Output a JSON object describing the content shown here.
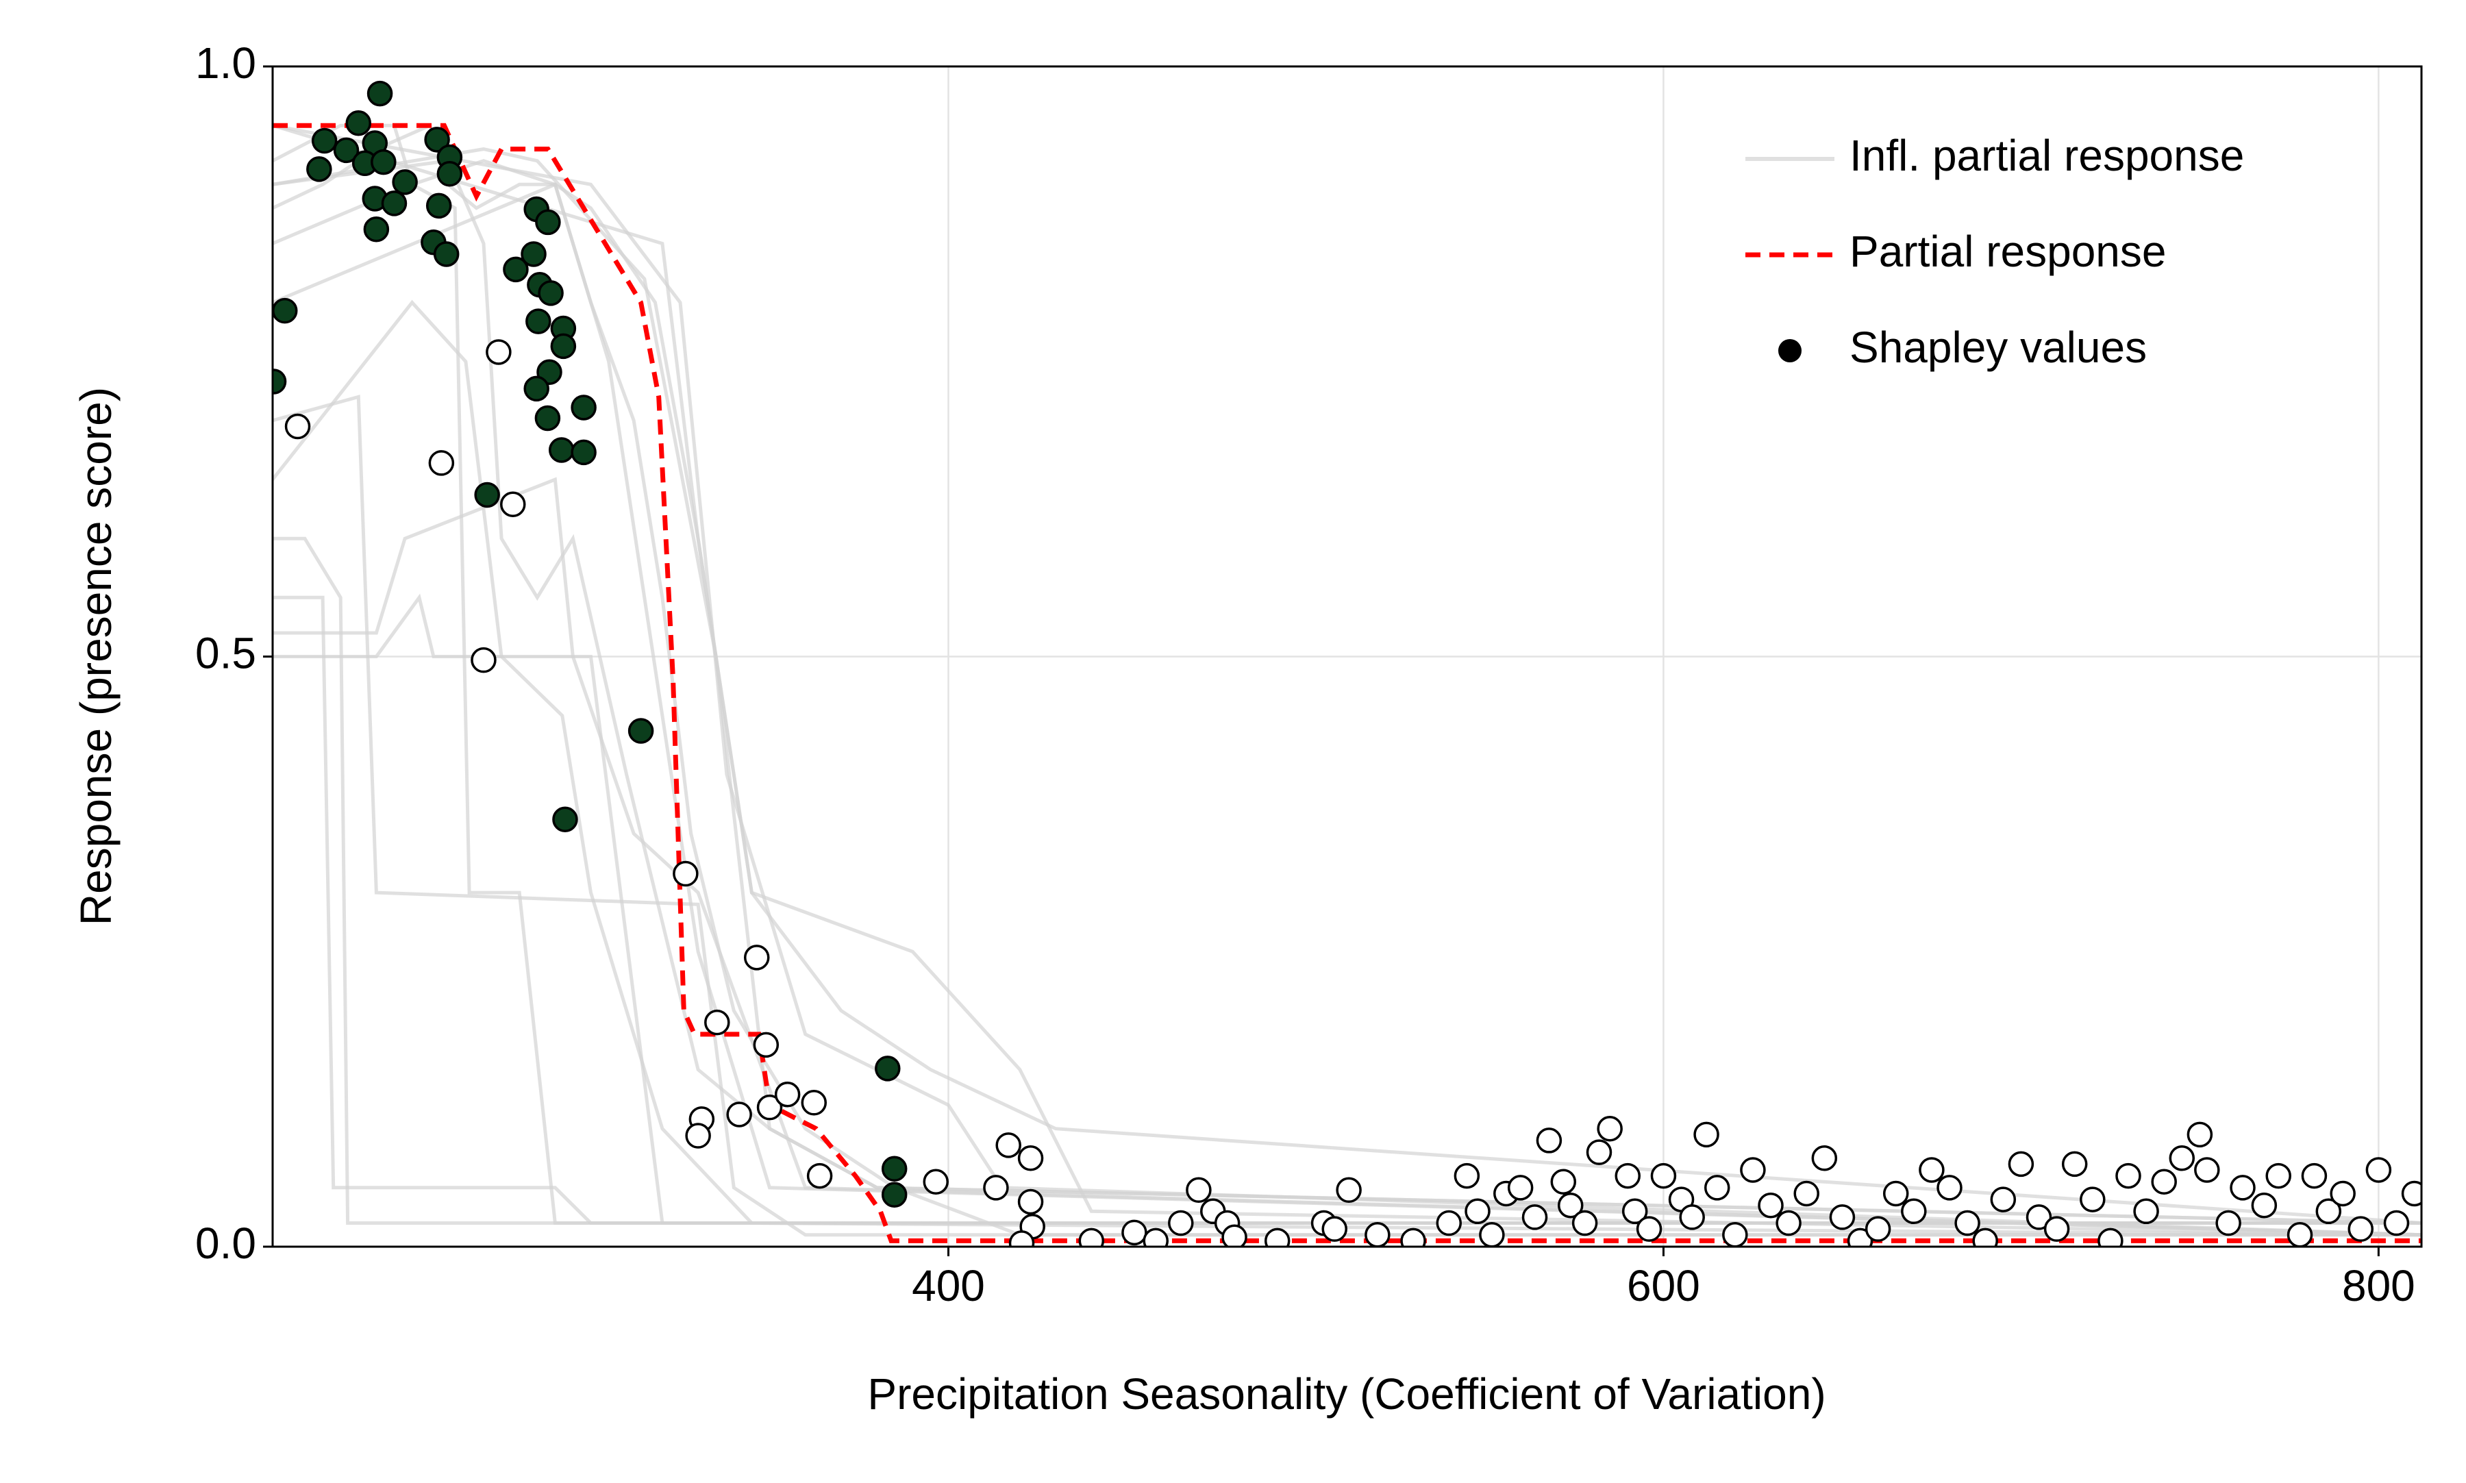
{
  "chart_data": {
    "type": "line",
    "xlabel": "Precipitation Seasonality (Coefficient of Variation)",
    "ylabel": "Response (presence score)",
    "xlim": [
      211,
      812
    ],
    "ylim": [
      0,
      1
    ],
    "xticks": [
      400,
      600,
      800
    ],
    "yticks": [
      {
        "value": 0,
        "label": "0.0"
      },
      0.5,
      {
        "value": 1,
        "label": "1.0"
      }
    ],
    "grid": true,
    "legend": "upper right",
    "series": [
      {
        "name": "Infl. partial response",
        "color": "#d3d3d3",
        "lines": [
          {
            "x": [
              211,
              225,
              240,
              255,
              260,
              268,
              280,
              290,
              300,
              312,
              320,
              328,
              340,
              360,
              385,
              420,
              812
            ],
            "values": [
              0.88,
              0.9,
              0.93,
              0.95,
              0.9,
              0.88,
              0.9,
              0.9,
              0.8,
              0.7,
              0.55,
              0.35,
              0.2,
              0.1,
              0.05,
              0.01,
              0.01
            ]
          },
          {
            "x": [
              211,
              220,
              230,
              232,
              812
            ],
            "values": [
              0.6,
              0.6,
              0.55,
              0.02,
              0.02
            ]
          },
          {
            "x": [
              211,
              240,
              252,
              256,
              300,
              320,
              812
            ],
            "values": [
              0.5,
              0.5,
              0.55,
              0.5,
              0.5,
              0.02,
              0.02
            ]
          },
          {
            "x": [
              211,
              230,
              245,
              250,
              270,
              290,
              305,
              330,
              350,
              812
            ],
            "values": [
              0.92,
              0.95,
              0.95,
              0.9,
              0.92,
              0.9,
              0.75,
              0.25,
              0.05,
              0.01
            ]
          },
          {
            "x": [
              211,
              250,
              262,
              266,
              280,
              290,
              300,
              812
            ],
            "values": [
              0.85,
              0.9,
              0.88,
              0.3,
              0.3,
              0.02,
              0.02,
              0.02
            ]
          },
          {
            "x": [
              211,
              260,
              270,
              275,
              285,
              295,
              310,
              330,
              350,
              380,
              812
            ],
            "values": [
              0.9,
              0.92,
              0.85,
              0.6,
              0.55,
              0.6,
              0.4,
              0.15,
              0.1,
              0.05,
              0.02
            ]
          },
          {
            "x": [
              211,
              290,
              300,
              318,
              330,
              345,
              370,
              395,
              430,
              812
            ],
            "values": [
              0.8,
              0.9,
              0.88,
              0.8,
              0.6,
              0.3,
              0.2,
              0.15,
              0.1,
              0.02
            ]
          },
          {
            "x": [
              211,
              225,
              228,
              260,
              290,
              300,
              320,
              812
            ],
            "values": [
              0.55,
              0.55,
              0.05,
              0.05,
              0.05,
              0.02,
              0.02,
              0.02
            ]
          },
          {
            "x": [
              211,
              300,
              325,
              338,
              360,
              380,
              400,
              415,
              812
            ],
            "values": [
              0.95,
              0.9,
              0.8,
              0.4,
              0.18,
              0.15,
              0.12,
              0.05,
              0.01
            ]
          },
          {
            "x": [
              211,
              250,
              265,
              275,
              292,
              300,
              320,
              345,
              812
            ],
            "values": [
              0.65,
              0.8,
              0.75,
              0.5,
              0.45,
              0.3,
              0.1,
              0.02,
              0.01
            ]
          },
          {
            "x": [
              211,
              240,
              248,
              290,
              295,
              312,
              330,
              360,
              812
            ],
            "values": [
              0.52,
              0.52,
              0.6,
              0.65,
              0.5,
              0.35,
              0.3,
              0.05,
              0.01
            ]
          },
          {
            "x": [
              211,
              270,
              285,
              300,
              315,
              335,
              350,
              380,
              812
            ],
            "values": [
              0.9,
              0.93,
              0.92,
              0.87,
              0.82,
              0.5,
              0.1,
              0.05,
              0.02
            ]
          },
          {
            "x": [
              211,
              235,
              240,
              330,
              340,
              360,
              812
            ],
            "values": [
              0.7,
              0.72,
              0.3,
              0.29,
              0.05,
              0.01,
              0.01
            ]
          },
          {
            "x": [
              211,
              320,
              330,
              345,
              390,
              420,
              440,
              812
            ],
            "values": [
              0.95,
              0.85,
              0.6,
              0.3,
              0.25,
              0.15,
              0.03,
              0.01
            ]
          }
        ]
      },
      {
        "name": "Partial response",
        "color": "#ff0000",
        "x": [
          211,
          259,
          268,
          275,
          288,
          300,
          314,
          319,
          323,
          326,
          329,
          347,
          350,
          363,
          374,
          381,
          384,
          812
        ],
        "values": [
          0.95,
          0.95,
          0.89,
          0.93,
          0.93,
          0.87,
          0.8,
          0.72,
          0.48,
          0.2,
          0.18,
          0.18,
          0.12,
          0.1,
          0.06,
          0.03,
          0.005,
          0.005
        ]
      },
      {
        "name": "Shapley values",
        "color": "#000000",
        "groups": [
          {
            "color": "#0b3d1c",
            "x": [
              211.3,
              214.4,
              225.5,
              224,
              235,
              239.6,
              241,
              231.6,
              236.8,
              242,
              239.6,
              245,
              248,
              240,
              257,
              260.5,
              260.5,
              257.5,
              256,
              259.6,
              284.8,
              288,
              284,
              279,
              285.7,
              288.8,
              285.3,
              292.3,
              292.3,
              288.4,
              284.8,
              287.9,
              298,
              291.8,
              298,
              271,
              314,
              292.8,
              383,
              384.9,
              384.9
            ],
            "values": [
              0.733,
              0.793,
              0.937,
              0.913,
              0.952,
              0.935,
              0.977,
              0.929,
              0.918,
              0.919,
              0.888,
              0.884,
              0.902,
              0.862,
              0.938,
              0.923,
              0.909,
              0.882,
              0.851,
              0.841,
              0.879,
              0.868,
              0.841,
              0.828,
              0.815,
              0.808,
              0.784,
              0.778,
              0.763,
              0.741,
              0.727,
              0.702,
              0.711,
              0.675,
              0.673,
              0.637,
              0.437,
              0.362,
              0.151,
              0.066,
              0.044
            ]
          },
          {
            "color": "#ffffff",
            "x": [
              218,
              274.2,
              258.2,
              278.2,
              270,
              326.5,
              346.4,
              335.3,
              349,
              350,
              355,
              362.4,
              341.5,
              331,
              330,
              364,
              396.5,
              413.3,
              416.8,
              423,
              423,
              423.5,
              420.5,
              440,
              452,
              458,
              465,
              470,
              474,
              478,
              480,
              492,
              505,
              508,
              512,
              520,
              530,
              540,
              545,
              548,
              552,
              556,
              560,
              564,
              568,
              572,
              574,
              578,
              582,
              585,
              590,
              592,
              596,
              600,
              605,
              608,
              612,
              615,
              620,
              625,
              630,
              635,
              640,
              645,
              650,
              655,
              660,
              665,
              670,
              675,
              680,
              685,
              690,
              695,
              700,
              705,
              710,
              715,
              720,
              725,
              730,
              735,
              740,
              745,
              750,
              752,
              758,
              762,
              768,
              772,
              778,
              782,
              786,
              790,
              795,
              800,
              805,
              810
            ],
            "values": [
              0.695,
              0.758,
              0.664,
              0.629,
              0.497,
              0.316,
              0.245,
              0.19,
              0.171,
              0.118,
              0.129,
              0.122,
              0.112,
              0.108,
              0.094,
              0.06,
              0.055,
              0.05,
              0.086,
              0.075,
              0.038,
              0.017,
              0.003,
              0.005,
              0.012,
              0.005,
              0.02,
              0.048,
              0.03,
              0.02,
              0.008,
              0.005,
              0.02,
              0.015,
              0.048,
              0.01,
              0.005,
              0.02,
              0.06,
              0.03,
              0.01,
              0.045,
              0.05,
              0.025,
              0.09,
              0.055,
              0.035,
              0.02,
              0.08,
              0.1,
              0.06,
              0.03,
              0.015,
              0.06,
              0.04,
              0.025,
              0.095,
              0.05,
              0.01,
              0.065,
              0.035,
              0.02,
              0.045,
              0.075,
              0.025,
              0.005,
              0.015,
              0.045,
              0.03,
              0.065,
              0.05,
              0.02,
              0.005,
              0.04,
              0.07,
              0.025,
              0.015,
              0.07,
              0.04,
              0.005,
              0.06,
              0.03,
              0.055,
              0.075,
              0.095,
              0.065,
              0.02,
              0.05,
              0.035,
              0.06,
              0.01,
              0.06,
              0.03,
              0.045,
              0.015,
              0.065,
              0.02,
              0.045
            ]
          }
        ]
      }
    ]
  }
}
